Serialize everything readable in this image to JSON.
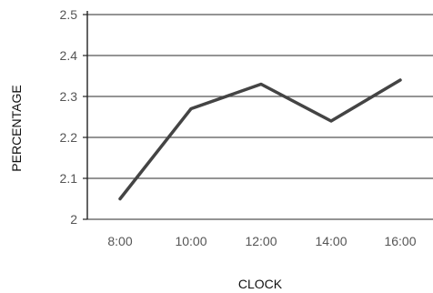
{
  "chart_data": {
    "type": "line",
    "x": [
      "8:00",
      "10:00",
      "12:00",
      "14:00",
      "16:00"
    ],
    "series": [
      {
        "values": [
          2.05,
          2.27,
          2.33,
          2.24,
          2.34
        ]
      }
    ],
    "xlabel": "CLOCK",
    "ylabel": "PERCENTAGE",
    "ylim": [
      2,
      2.5
    ],
    "yticks": [
      "2",
      "2.1",
      "2.2",
      "2.3",
      "2.4",
      "2.5"
    ],
    "grid": true,
    "colors": {
      "line": "#444444",
      "grid": "#555555",
      "axis": "#222222"
    }
  }
}
